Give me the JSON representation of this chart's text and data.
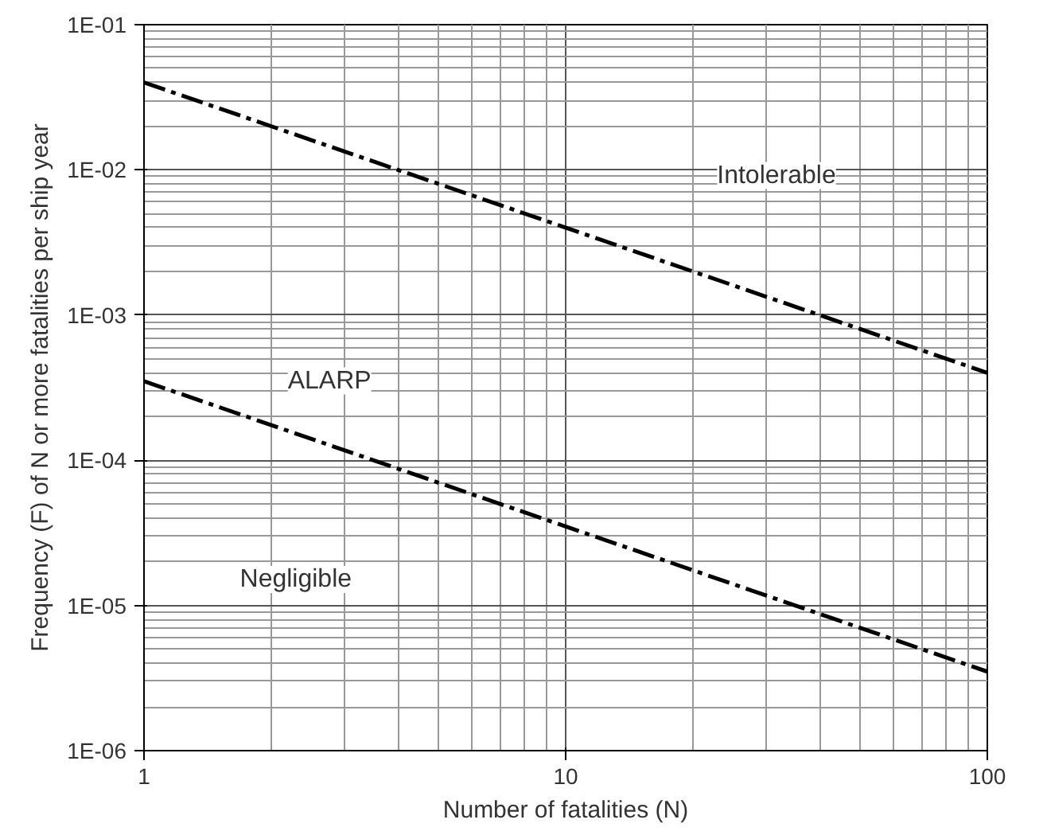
{
  "chart_data": {
    "type": "line",
    "xlabel": "Number of fatalities (N)",
    "ylabel": "Frequency (F) of N or more fatalities per ship year",
    "log": "xy",
    "grid": true,
    "marker": "none",
    "line_style": "dashed",
    "xlim": [
      1,
      100
    ],
    "xticks": [
      1,
      10,
      100
    ],
    "ylim": [
      1e-06,
      0.1
    ],
    "yticks": [
      {
        "value": 1e-06,
        "label": "1E-06"
      },
      {
        "value": 1e-05,
        "label": "1E-05"
      },
      {
        "value": 0.0001,
        "label": "1E-04"
      },
      {
        "value": 0.001,
        "label": "1E-03"
      },
      {
        "value": 0.01,
        "label": "1E-02"
      },
      {
        "value": 0.1,
        "label": "1E-01"
      }
    ],
    "x": [
      1,
      100
    ],
    "series": [
      {
        "color": "#000000",
        "values": [
          0.04,
          0.0004
        ]
      },
      {
        "color": "#000000",
        "values": [
          0.00035,
          3.5e-06
        ]
      }
    ],
    "annotations": [
      "Intolerable",
      "ALARP",
      "Negligible"
    ]
  }
}
